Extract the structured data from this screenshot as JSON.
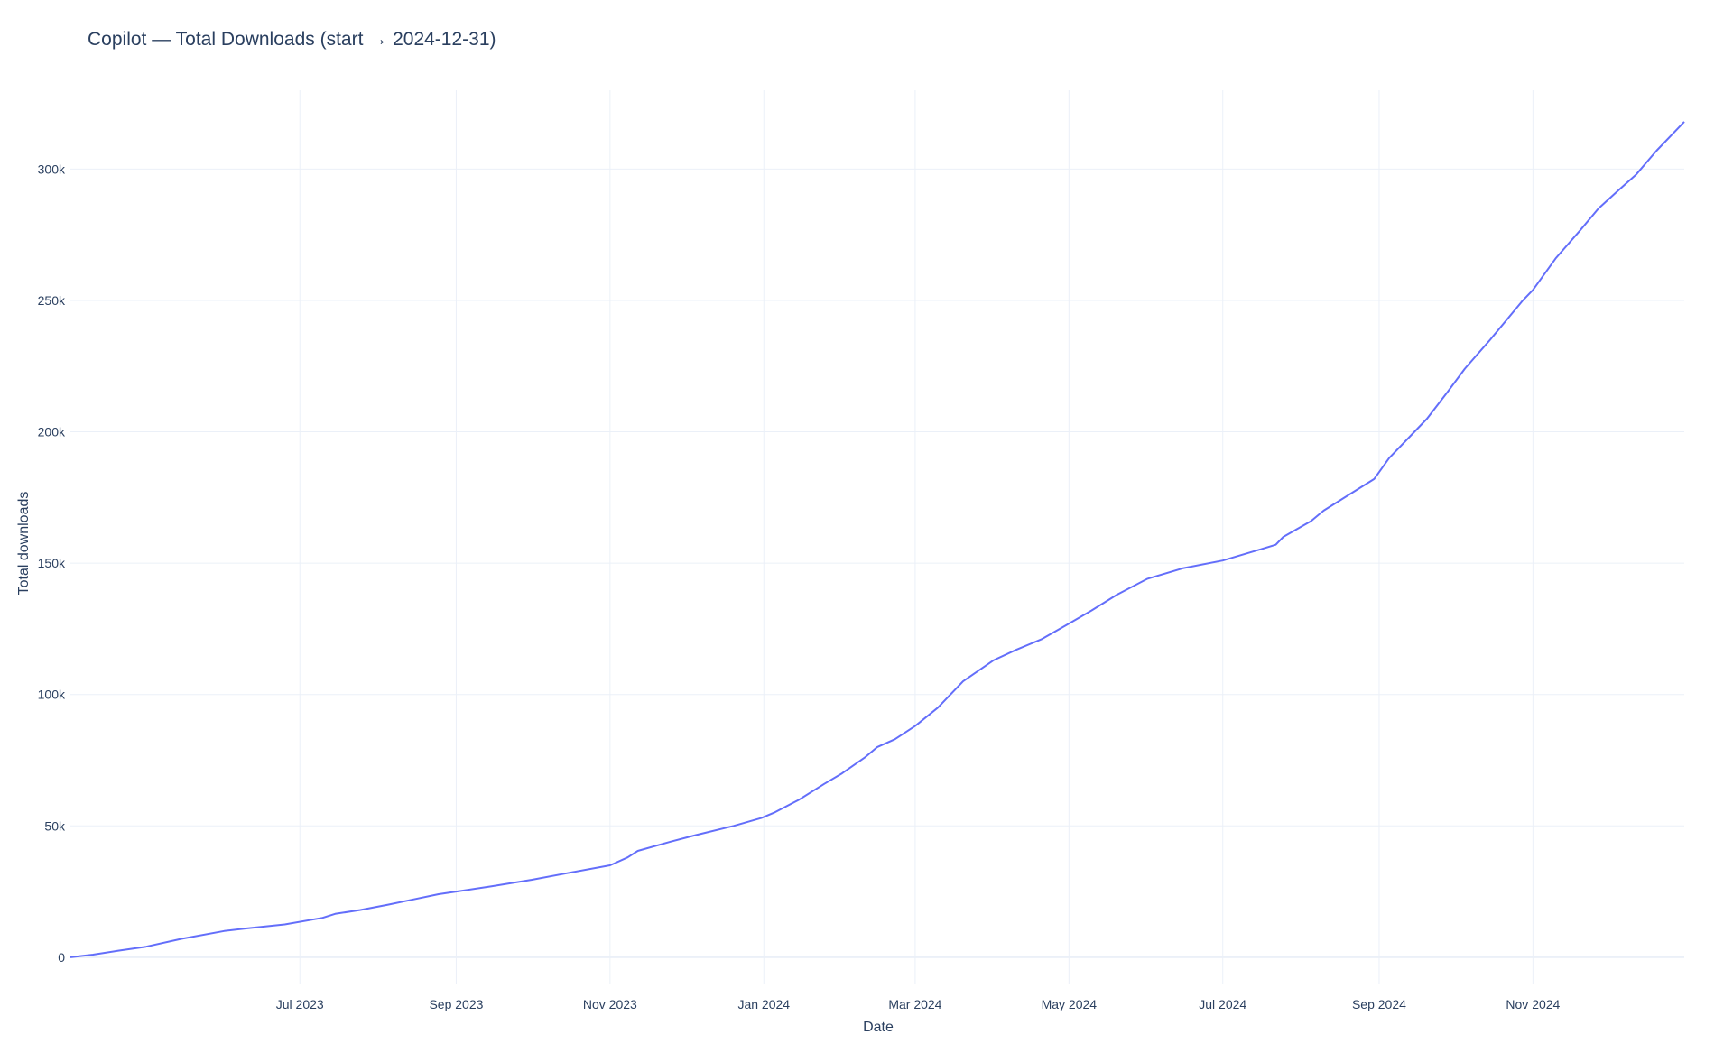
{
  "chart_data": {
    "type": "line",
    "title": "Copilot — Total Downloads (start → 2024-12-31)",
    "xlabel": "Date",
    "ylabel": "Total downloads",
    "xlim": [
      "2023-04-01",
      "2024-12-31"
    ],
    "ylim": [
      -10000,
      330000
    ],
    "grid": true,
    "legend": "none",
    "x_ticks": [
      {
        "date": "2023-07-01",
        "label": "Jul 2023"
      },
      {
        "date": "2023-09-01",
        "label": "Sep 2023"
      },
      {
        "date": "2023-11-01",
        "label": "Nov 2023"
      },
      {
        "date": "2024-01-01",
        "label": "Jan 2024"
      },
      {
        "date": "2024-03-01",
        "label": "Mar 2024"
      },
      {
        "date": "2024-05-01",
        "label": "May 2024"
      },
      {
        "date": "2024-07-01",
        "label": "Jul 2024"
      },
      {
        "date": "2024-09-01",
        "label": "Sep 2024"
      },
      {
        "date": "2024-11-01",
        "label": "Nov 2024"
      }
    ],
    "y_ticks": [
      {
        "value": 0,
        "label": "0"
      },
      {
        "value": 50000,
        "label": "50k"
      },
      {
        "value": 100000,
        "label": "100k"
      },
      {
        "value": 150000,
        "label": "150k"
      },
      {
        "value": 200000,
        "label": "200k"
      },
      {
        "value": 250000,
        "label": "250k"
      },
      {
        "value": 300000,
        "label": "300k"
      }
    ],
    "series": [
      {
        "color": "#636efa",
        "x": [
          "2023-04-01",
          "2023-04-10",
          "2023-04-20",
          "2023-05-01",
          "2023-05-15",
          "2023-06-01",
          "2023-06-10",
          "2023-06-25",
          "2023-07-10",
          "2023-07-15",
          "2023-07-25",
          "2023-08-05",
          "2023-08-15",
          "2023-08-25",
          "2023-09-01",
          "2023-09-15",
          "2023-10-01",
          "2023-10-15",
          "2023-11-01",
          "2023-11-08",
          "2023-11-12",
          "2023-11-25",
          "2023-12-05",
          "2023-12-20",
          "2023-12-31",
          "2024-01-05",
          "2024-01-15",
          "2024-01-25",
          "2024-02-01",
          "2024-02-10",
          "2024-02-15",
          "2024-02-22",
          "2024-03-01",
          "2024-03-10",
          "2024-03-20",
          "2024-04-01",
          "2024-04-10",
          "2024-04-20",
          "2024-05-01",
          "2024-05-10",
          "2024-05-20",
          "2024-06-01",
          "2024-06-15",
          "2024-07-01",
          "2024-07-15",
          "2024-07-22",
          "2024-07-25",
          "2024-08-05",
          "2024-08-10",
          "2024-08-20",
          "2024-08-30",
          "2024-09-05",
          "2024-09-15",
          "2024-09-20",
          "2024-09-28",
          "2024-10-05",
          "2024-10-15",
          "2024-10-28",
          "2024-11-01",
          "2024-11-10",
          "2024-11-20",
          "2024-11-27",
          "2024-12-05",
          "2024-12-12",
          "2024-12-20",
          "2024-12-31"
        ],
        "y": [
          0,
          1000,
          2500,
          4000,
          7000,
          10000,
          11000,
          12500,
          15000,
          16500,
          18000,
          20000,
          22000,
          24000,
          25000,
          27000,
          29500,
          32000,
          35000,
          38000,
          40500,
          44000,
          46500,
          50000,
          53000,
          55000,
          60000,
          66000,
          70000,
          76000,
          80000,
          83000,
          88000,
          95000,
          105000,
          113000,
          117000,
          121000,
          127000,
          132000,
          138000,
          144000,
          148000,
          151000,
          155000,
          157000,
          160000,
          166000,
          170000,
          176000,
          182000,
          190000,
          200000,
          205000,
          215000,
          224000,
          235000,
          250000,
          254000,
          266000,
          277000,
          285000,
          292000,
          298000,
          307000,
          318000
        ]
      }
    ]
  }
}
